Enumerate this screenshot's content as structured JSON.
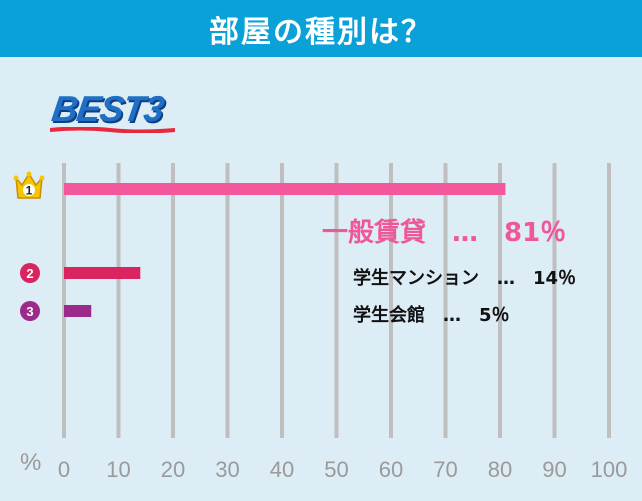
{
  "header": {
    "title": "部屋の種別は？"
  },
  "badge": {
    "text": "BEST3"
  },
  "ranks": [
    "1",
    "2",
    "3"
  ],
  "labels": {
    "rank1": "一般賃貸　…　81％",
    "rank2": "学生マンション　…　14％",
    "rank3": "学生会館　…　5％"
  },
  "axis": {
    "unit": "%"
  },
  "colors": {
    "header_bg": "#0aa0d8",
    "rank1": "#f2589b",
    "rank2": "#d9245f",
    "rank3": "#9c2a8a",
    "grid": "#bfbfbf",
    "crown": "#f7c600"
  },
  "chart_data": {
    "type": "bar",
    "orientation": "horizontal",
    "title": "部屋の種別は？",
    "categories": [
      "一般賃貸",
      "学生マンション",
      "学生会館"
    ],
    "values": [
      81,
      14,
      5
    ],
    "xlim": [
      0,
      100
    ],
    "xticks": [
      "0",
      "10",
      "20",
      "30",
      "40",
      "50",
      "60",
      "70",
      "80",
      "90",
      "100"
    ],
    "xlabel": "%",
    "grid": true
  }
}
